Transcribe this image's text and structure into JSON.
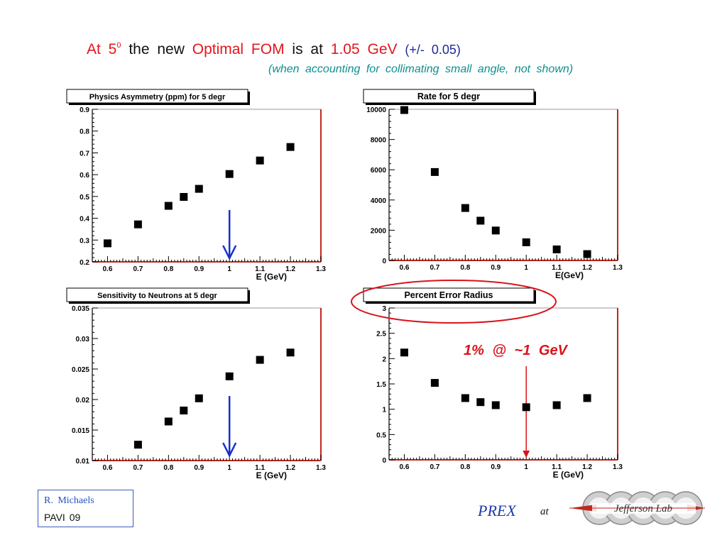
{
  "header": {
    "title_part1": "At  5",
    "title_sup": "0",
    "title_part2": "the  new",
    "title_part3": "Optimal  FOM",
    "title_part4": "is  at",
    "title_part5": "1.05 GeV",
    "title_part6": "(+/- 0.05)",
    "subtitle": "(when  accounting  for  collimating  small   angle,  not  shown)"
  },
  "annotation": {
    "text": "1%  @  ~1 GeV",
    "color": "#d9141b"
  },
  "footer": {
    "author": "R.  Michaels",
    "conference": "PAVI  09",
    "prex": "PREX",
    "at": "at",
    "logo_text": "Jefferson Lab"
  },
  "colors": {
    "frame_right": "#c0281e",
    "axis_red": "#c0281e",
    "arrow_blue": "#1730c8",
    "arrow_red": "#d9141b",
    "marker": "#000000"
  },
  "chart_data": [
    {
      "id": "asym",
      "type": "scatter",
      "title": "Physics Asymmetry (ppm) for 5 degr",
      "xlabel": "E (GeV)",
      "ylabel": "",
      "xlim": [
        0.55,
        1.3
      ],
      "ylim": [
        0.2,
        0.9
      ],
      "xticks": [
        0.6,
        0.7,
        0.8,
        0.9,
        1,
        1.1,
        1.2,
        1.3
      ],
      "yticks": [
        0.2,
        0.3,
        0.4,
        0.5,
        0.6,
        0.7,
        0.8,
        0.9
      ],
      "ytick_labels": [
        "0.2",
        "0.3",
        "0.4",
        "0.5",
        "0.6",
        "0.7",
        "0.8",
        "0.9"
      ],
      "x": [
        0.6,
        0.7,
        0.8,
        0.85,
        0.9,
        1.0,
        1.1,
        1.2
      ],
      "y": [
        0.285,
        0.372,
        0.457,
        0.498,
        0.535,
        0.603,
        0.665,
        0.727
      ],
      "arrow": {
        "x": 1.0,
        "color": "blue"
      }
    },
    {
      "id": "rate",
      "type": "scatter",
      "title": "Rate for 5 degr",
      "xlabel": "E(GeV)",
      "ylabel": "",
      "xlim": [
        0.55,
        1.3
      ],
      "ylim": [
        0,
        10000
      ],
      "xticks": [
        0.6,
        0.7,
        0.8,
        0.9,
        1,
        1.1,
        1.2,
        1.3
      ],
      "yticks": [
        0,
        2000,
        4000,
        6000,
        8000,
        10000
      ],
      "ytick_labels": [
        "0",
        "2000",
        "4000",
        "6000",
        "8000",
        "10000"
      ],
      "x": [
        0.6,
        0.7,
        0.8,
        0.85,
        0.9,
        1.0,
        1.1,
        1.2
      ],
      "y": [
        9950,
        5850,
        3470,
        2630,
        1980,
        1200,
        730,
        420
      ]
    },
    {
      "id": "sens",
      "type": "scatter",
      "title": "Sensitivity to Neutrons at 5 degr",
      "xlabel": "E (GeV)",
      "ylabel": "",
      "xlim": [
        0.55,
        1.3
      ],
      "ylim": [
        0.01,
        0.035
      ],
      "xticks": [
        0.6,
        0.7,
        0.8,
        0.9,
        1,
        1.1,
        1.2,
        1.3
      ],
      "yticks": [
        0.01,
        0.015,
        0.02,
        0.025,
        0.03,
        0.035
      ],
      "ytick_labels": [
        "0.01",
        "0.015",
        "0.02",
        "0.025",
        "0.03",
        "0.035"
      ],
      "x": [
        0.7,
        0.8,
        0.85,
        0.9,
        1.0,
        1.1,
        1.2
      ],
      "y": [
        0.0126,
        0.0164,
        0.0182,
        0.0202,
        0.0238,
        0.0265,
        0.0277
      ],
      "arrow": {
        "x": 1.0,
        "color": "blue"
      }
    },
    {
      "id": "err",
      "type": "scatter",
      "title": "Percent Error Radius",
      "xlabel": "E (GeV)",
      "ylabel": "",
      "xlim": [
        0.55,
        1.3
      ],
      "ylim": [
        0,
        3
      ],
      "xticks": [
        0.6,
        0.7,
        0.8,
        0.9,
        1,
        1.1,
        1.2,
        1.3
      ],
      "yticks": [
        0,
        0.5,
        1,
        1.5,
        2,
        2.5,
        3
      ],
      "ytick_labels": [
        "0",
        "0.5",
        "1",
        "1.5",
        "2",
        "2.5",
        "3"
      ],
      "x": [
        0.6,
        0.7,
        0.8,
        0.85,
        0.9,
        1.0,
        1.1,
        1.2
      ],
      "y": [
        2.12,
        1.52,
        1.22,
        1.14,
        1.08,
        1.04,
        1.08,
        1.22
      ],
      "arrow": {
        "x": 1.0,
        "color": "red"
      }
    }
  ]
}
